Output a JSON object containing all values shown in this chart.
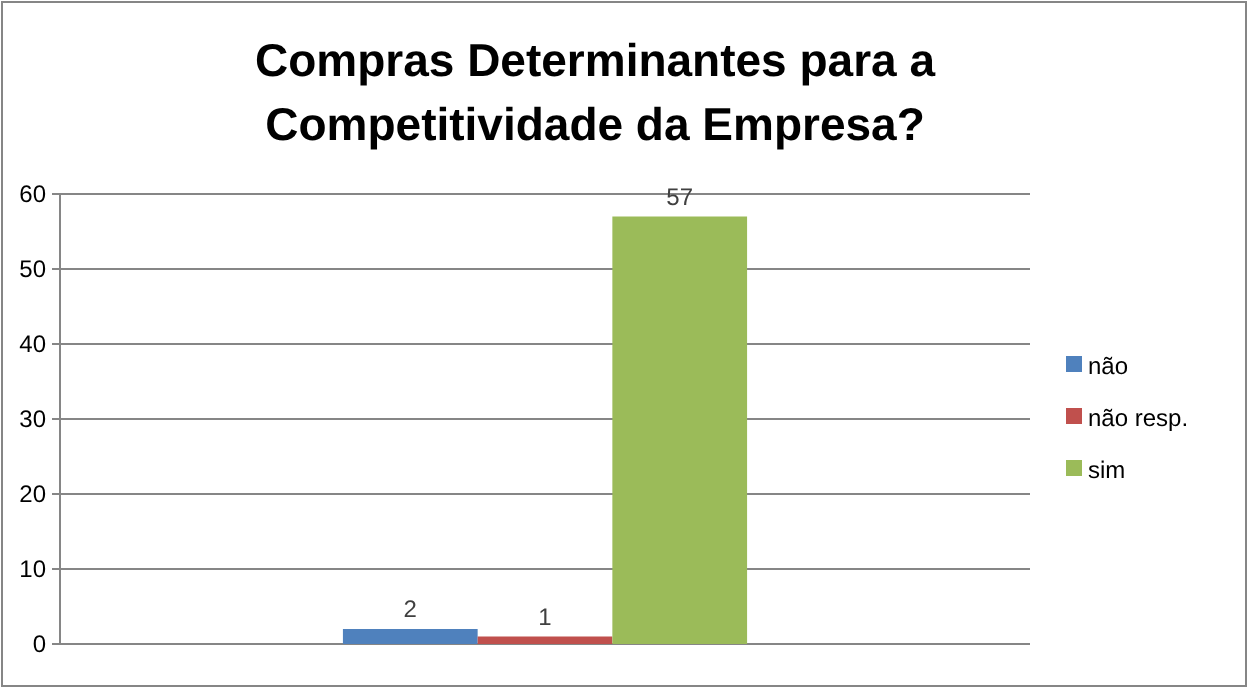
{
  "chart_data": {
    "type": "bar",
    "title": "Compras Determinantes para a Competitividade da Empresa?",
    "categories": [
      null
    ],
    "series": [
      {
        "name": "não",
        "color": "#4f81bd",
        "values": [
          2
        ]
      },
      {
        "name": "não resp.",
        "color": "#c0504d",
        "values": [
          1
        ]
      },
      {
        "name": "sim",
        "color": "#9bbb59",
        "values": [
          57
        ]
      }
    ],
    "ylim": [
      0,
      60
    ],
    "yticks": [
      0,
      10,
      20,
      30,
      40,
      50,
      60
    ],
    "grid": "y",
    "legend": "right",
    "data_labels": true
  }
}
